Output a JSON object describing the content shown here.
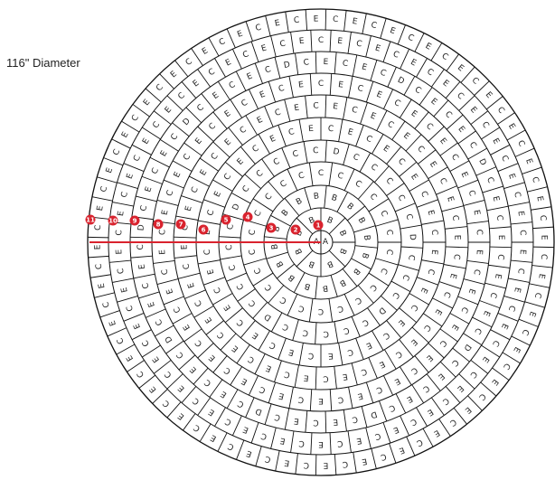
{
  "title": "116\" Diameter",
  "colors": {
    "line": "#111111",
    "marker": "#d9232e",
    "marker_text": "#ffffff"
  },
  "diagram": {
    "center_tiles": [
      "A",
      "A"
    ],
    "rings": [
      {
        "count": 8,
        "letter_pattern": [
          "B"
        ]
      },
      {
        "count": 16,
        "letter_pattern": [
          "B"
        ]
      },
      {
        "count": 22,
        "letter_pattern": [
          "C"
        ]
      },
      {
        "count": 28,
        "letter_pattern": [
          "C",
          "C",
          "C",
          "D",
          "C",
          "C"
        ]
      },
      {
        "count": 36,
        "letter_pattern": [
          "E",
          "C"
        ]
      },
      {
        "count": 44,
        "letter_pattern": [
          "C",
          "E"
        ]
      },
      {
        "count": 50,
        "letter_pattern": [
          "E",
          "C"
        ]
      },
      {
        "count": 58,
        "letter_pattern": [
          "C",
          "E",
          "C",
          "E",
          "C",
          "D"
        ]
      },
      {
        "count": 66,
        "letter_pattern": [
          "E",
          "C"
        ]
      },
      {
        "count": 72,
        "letter_pattern": [
          "C",
          "E"
        ]
      }
    ],
    "markers": [
      "1",
      "2",
      "3",
      "4",
      "5",
      "6",
      "7",
      "8",
      "9",
      "10",
      "11"
    ]
  }
}
